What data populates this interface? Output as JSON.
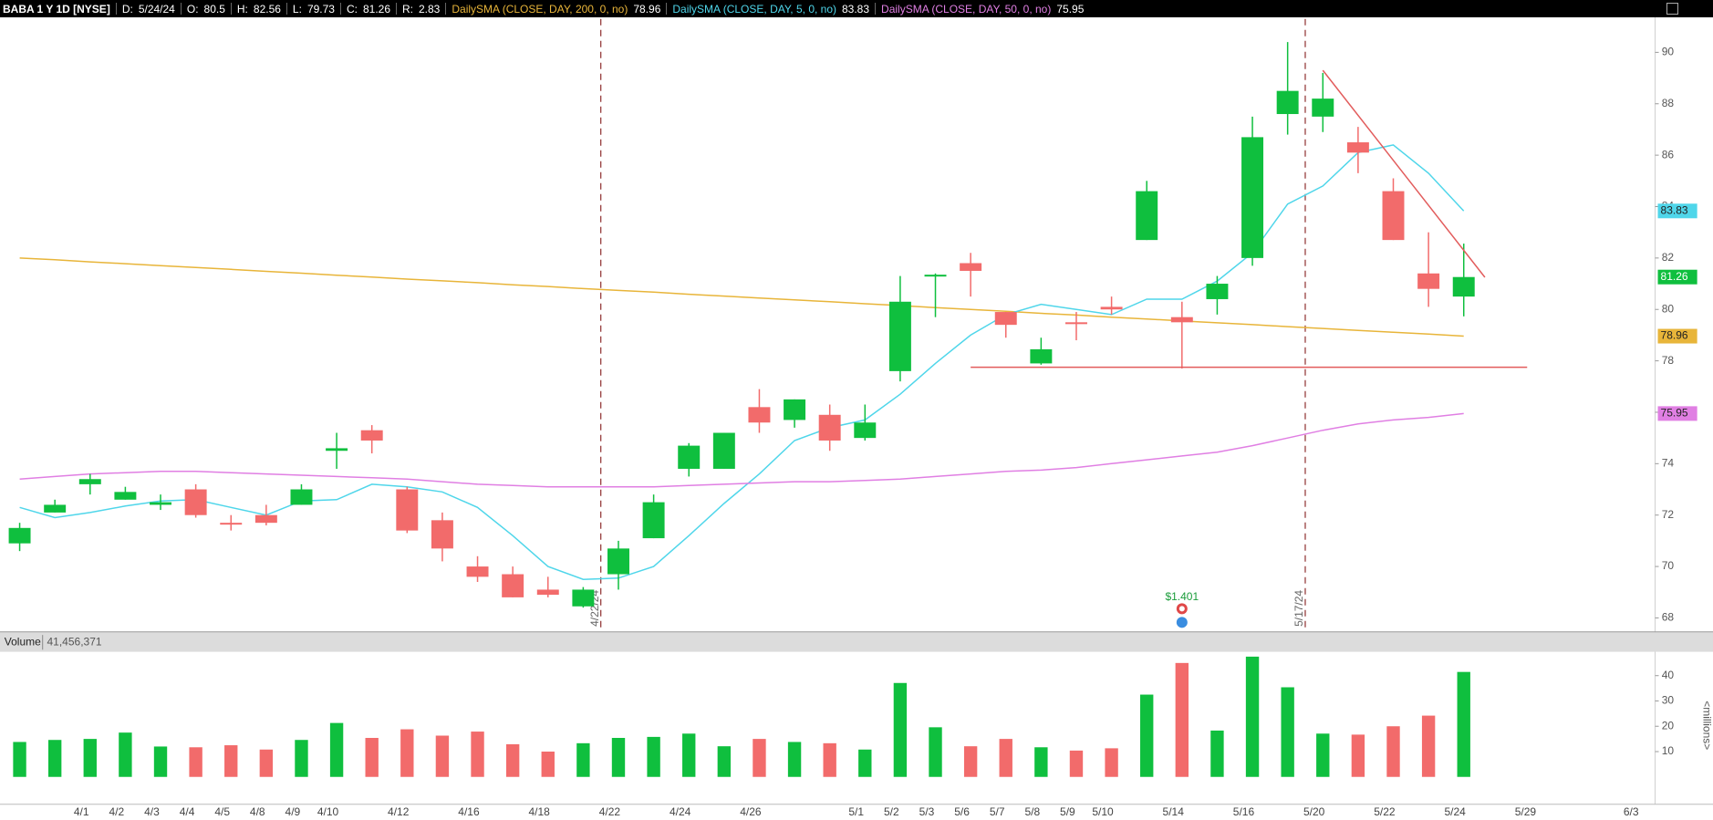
{
  "header": {
    "symbol": "BABA 1 Y 1D [NYSE]",
    "date_label": "D:",
    "date": "5/24/24",
    "open_label": "O:",
    "high_label": "H:",
    "low_label": "L:",
    "close_label": "C:",
    "range_label": "R:",
    "range": 2.83
  },
  "chart_data": {
    "type": "candlestick",
    "categories": [
      null,
      null,
      "4/1",
      "4/2",
      "4/3",
      "4/4",
      "4/5",
      "4/8",
      "4/9",
      "4/10",
      null,
      "4/12",
      null,
      "4/16",
      null,
      "4/18",
      null,
      "4/22",
      null,
      "4/24",
      null,
      "4/26",
      null,
      null,
      "5/1",
      "5/2",
      "5/3",
      "5/6",
      "5/7",
      "5/8",
      "5/9",
      "5/10",
      null,
      "5/14",
      null,
      "5/16",
      null,
      "5/20",
      null,
      "5/22",
      null,
      "5/24",
      null,
      "5/29",
      null,
      null,
      "6/3"
    ],
    "open": [
      70.9,
      72.1,
      73.2,
      72.6,
      72.4,
      73.0,
      71.7,
      72.0,
      72.4,
      74.5,
      75.3,
      73.0,
      71.8,
      70.0,
      69.7,
      69.1,
      68.45,
      69.7,
      71.1,
      73.8,
      73.8,
      76.2,
      75.7,
      75.9,
      75.0,
      77.6,
      81.3,
      81.8,
      79.9,
      77.9,
      79.5,
      80.1,
      82.7,
      79.7,
      80.4,
      82.0,
      87.6,
      87.5,
      86.5,
      84.6,
      81.4,
      80.5,
      null,
      null,
      null,
      null,
      null
    ],
    "high": [
      71.7,
      72.6,
      73.6,
      73.1,
      72.8,
      73.2,
      72.0,
      72.4,
      73.2,
      75.2,
      75.5,
      73.1,
      72.1,
      70.4,
      70.0,
      69.6,
      69.2,
      71.0,
      72.8,
      74.8,
      75.2,
      76.9,
      76.5,
      76.3,
      76.3,
      81.3,
      81.4,
      82.2,
      79.9,
      78.9,
      79.9,
      80.5,
      85.0,
      80.3,
      81.3,
      87.5,
      90.4,
      89.2,
      87.1,
      85.1,
      83.0,
      82.56,
      null,
      null,
      null,
      null,
      null
    ],
    "low": [
      70.6,
      72.1,
      72.8,
      72.6,
      72.2,
      71.9,
      71.4,
      71.6,
      72.4,
      73.8,
      74.4,
      71.3,
      70.2,
      69.4,
      68.8,
      68.8,
      68.4,
      69.1,
      71.1,
      73.5,
      73.8,
      75.2,
      75.4,
      74.5,
      74.9,
      77.2,
      79.7,
      80.5,
      78.9,
      77.85,
      78.8,
      79.8,
      82.7,
      77.7,
      79.8,
      81.7,
      86.8,
      86.9,
      85.3,
      82.7,
      80.1,
      79.73,
      null,
      null,
      null,
      null,
      null
    ],
    "close": [
      71.5,
      72.4,
      73.4,
      72.9,
      72.5,
      72.0,
      71.65,
      71.7,
      73.0,
      74.6,
      74.9,
      71.4,
      70.7,
      69.6,
      68.8,
      68.9,
      69.1,
      70.7,
      72.5,
      74.7,
      75.2,
      75.6,
      76.5,
      74.9,
      75.6,
      80.3,
      81.35,
      81.5,
      79.4,
      78.45,
      79.45,
      80.0,
      84.6,
      79.5,
      81.0,
      86.7,
      88.5,
      88.2,
      86.1,
      82.7,
      80.8,
      81.26,
      null,
      null,
      null,
      null,
      null
    ],
    "up_color": "#0fbf3e",
    "down_color": "#f26b6b",
    "ylim": [
      67.5,
      91.3
    ],
    "yticks": [
      68,
      70,
      72,
      74,
      76,
      78,
      80,
      82,
      84,
      86,
      88,
      90
    ],
    "studies": [
      {
        "name": "DailySMA (CLOSE, DAY, 200, 0, no)",
        "color": "#e8b53a",
        "values": [
          82.0,
          81.93,
          81.85,
          81.78,
          81.7,
          81.63,
          81.56,
          81.48,
          81.41,
          81.33,
          81.26,
          81.18,
          81.11,
          81.04,
          80.96,
          80.89,
          80.81,
          80.74,
          80.67,
          80.59,
          80.52,
          80.44,
          80.37,
          80.3,
          80.22,
          80.15,
          80.07,
          80.0,
          79.93,
          79.85,
          79.78,
          79.7,
          79.63,
          79.55,
          79.48,
          79.41,
          79.33,
          79.26,
          79.18,
          79.11,
          79.04,
          78.96,
          null,
          null,
          null,
          null,
          null
        ]
      },
      {
        "name": "DailySMA (CLOSE, DAY, 5, 0, no)",
        "color": "#4fd6ea",
        "values": [
          72.3,
          71.9,
          72.1,
          72.35,
          72.55,
          72.6,
          72.3,
          72.0,
          72.55,
          72.6,
          73.2,
          73.1,
          72.9,
          72.3,
          71.2,
          70.0,
          69.5,
          69.55,
          70.0,
          71.2,
          72.45,
          73.6,
          74.9,
          75.4,
          75.7,
          76.7,
          77.9,
          79.0,
          79.8,
          80.2,
          80.0,
          79.8,
          80.4,
          80.4,
          81.1,
          82.2,
          84.1,
          84.8,
          86.1,
          86.4,
          85.3,
          83.83,
          null,
          null,
          null,
          null,
          null
        ]
      },
      {
        "name": "DailySMA (CLOSE, DAY, 50, 0, no)",
        "color": "#e07fe3",
        "values": [
          73.4,
          73.5,
          73.6,
          73.65,
          73.7,
          73.7,
          73.65,
          73.6,
          73.55,
          73.5,
          73.45,
          73.4,
          73.3,
          73.2,
          73.15,
          73.1,
          73.1,
          73.1,
          73.1,
          73.15,
          73.2,
          73.25,
          73.3,
          73.3,
          73.35,
          73.4,
          73.5,
          73.6,
          73.7,
          73.75,
          73.85,
          74.0,
          74.15,
          74.3,
          74.45,
          74.7,
          75.0,
          75.3,
          75.55,
          75.7,
          75.8,
          75.95,
          null,
          null,
          null,
          null,
          null
        ]
      }
    ],
    "trendlines": [
      {
        "color": "#e25c5c",
        "from": [
          37,
          89.3
        ],
        "to": [
          41.6,
          81.25
        ]
      },
      {
        "color": "#e25c5c",
        "from": [
          27,
          77.75
        ],
        "to": [
          42.8,
          77.75
        ]
      }
    ],
    "vlines": [
      {
        "label": "4/22/24",
        "x": 16.5
      },
      {
        "label": "5/17/24",
        "x": 36.5
      }
    ],
    "dividend": {
      "label": "$1.401",
      "x": 33
    },
    "volume": {
      "title": "Volume",
      "last_label": "41,456,371",
      "unit_label": "<millions>",
      "values": [
        13.8,
        14.6,
        15,
        17.5,
        12,
        11.7,
        12.5,
        10.8,
        14.6,
        21.3,
        15.4,
        18.8,
        16.3,
        17.9,
        12.9,
        10,
        13.3,
        15.4,
        15.8,
        17.1,
        12.1,
        15,
        13.8,
        13.3,
        10.8,
        37.1,
        19.6,
        12.1,
        15,
        11.7,
        10.4,
        11.3,
        32.5,
        45,
        18.3,
        47.5,
        35.4,
        17.1,
        16.7,
        20,
        24.2,
        41.46,
        null,
        null,
        null,
        null,
        null
      ],
      "ylim": [
        0,
        49
      ],
      "yticks": [
        10,
        20,
        30,
        40
      ]
    }
  }
}
